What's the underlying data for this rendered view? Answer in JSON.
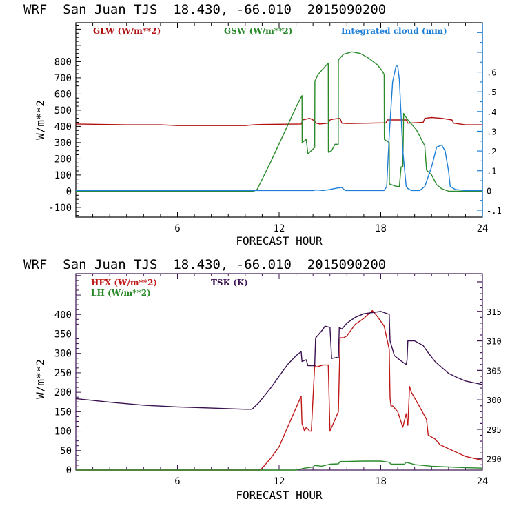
{
  "chart_data": [
    {
      "type": "line",
      "title": "WRF  San Juan TJS  18.430, -66.010  2015090200",
      "xlabel": "FORECAST HOUR",
      "ylabel": "W/m**2",
      "xlim": [
        0,
        24
      ],
      "ylim": [
        -160,
        1040
      ],
      "y2lim": [
        -0.135,
        0.85
      ],
      "xticks": [
        6,
        12,
        18,
        24
      ],
      "xtick_labels": [
        "6",
        "12",
        "18",
        "24"
      ],
      "yticks": [
        -100,
        0,
        100,
        200,
        300,
        400,
        500,
        600,
        700,
        800
      ],
      "ytick_labels": [
        "-100",
        "0",
        "100",
        "200",
        "300",
        "400",
        "500",
        "600",
        "700",
        "800"
      ],
      "y2ticks": [
        -0.1,
        0,
        0.1,
        0.2,
        0.3,
        0.4,
        0.5,
        0.6
      ],
      "y2tick_labels": [
        "-.1",
        "0",
        ".1",
        ".2",
        ".3",
        ".4",
        ".5",
        ".6"
      ],
      "grid": false,
      "legend": "top",
      "axis_color": "#000000",
      "right_axis_color": "#1e7fd8",
      "series": [
        {
          "name": "GLW (W/m**2)",
          "color": "#b01010",
          "axis": "left",
          "x": [
            0,
            3,
            5,
            6,
            8,
            10,
            10.5,
            11,
            13.3,
            13.4,
            13.8,
            14.0,
            14.2,
            14.4,
            14.9,
            15.0,
            15.2,
            15.6,
            15.7,
            16,
            18.3,
            18.4,
            19.5,
            19.6,
            20.5,
            20.6,
            21.0,
            21.6,
            22.2,
            22.3,
            23,
            24
          ],
          "y": [
            415,
            410,
            410,
            405,
            405,
            405,
            410,
            412,
            415,
            440,
            450,
            440,
            420,
            415,
            420,
            440,
            445,
            450,
            420,
            418,
            422,
            440,
            440,
            420,
            425,
            450,
            455,
            450,
            440,
            420,
            410,
            410
          ]
        },
        {
          "name": "GSW (W/m**2)",
          "color": "#2a8a2a",
          "axis": "left",
          "x": [
            0,
            10.5,
            10.7,
            11.5,
            12.3,
            13.0,
            13.35,
            13.36,
            13.6,
            13.7,
            13.71,
            13.9,
            14.1,
            14.11,
            14.3,
            14.8,
            14.9,
            14.91,
            15.1,
            15.3,
            15.49,
            15.5,
            15.8,
            16.3,
            16.8,
            17.3,
            17.8,
            18.1,
            18.2,
            18.21,
            18.5,
            18.51,
            18.9,
            19.1,
            19.2,
            19.3,
            19.35,
            19.4,
            19.6,
            20.1,
            20.6,
            20.7,
            21.0,
            21.3,
            21.6,
            22.0,
            23,
            24
          ],
          "y": [
            0,
            0,
            10,
            180,
            360,
            520,
            590,
            300,
            320,
            230,
            230,
            250,
            270,
            680,
            720,
            780,
            790,
            240,
            250,
            290,
            290,
            810,
            845,
            860,
            850,
            820,
            780,
            740,
            720,
            320,
            300,
            45,
            30,
            30,
            150,
            150,
            480,
            470,
            440,
            380,
            280,
            130,
            100,
            40,
            15,
            0,
            0,
            0
          ]
        },
        {
          "name": "Integrated cloud (mm)",
          "color": "#1e7fd8",
          "axis": "right",
          "x": [
            0,
            14.0,
            14.2,
            14.6,
            15.0,
            15.4,
            15.7,
            15.9,
            18.2,
            18.35,
            18.5,
            18.7,
            18.9,
            19.0,
            19.1,
            19.3,
            19.5,
            19.6,
            19.8,
            20.3,
            20.6,
            21.0,
            21.3,
            21.6,
            21.8,
            22.0,
            22.1,
            22.4,
            23,
            24
          ],
          "y": [
            0,
            0,
            0.003,
            0,
            0.005,
            0.012,
            0.015,
            0,
            0,
            0.02,
            0.28,
            0.55,
            0.63,
            0.63,
            0.56,
            0.2,
            0.02,
            0.01,
            0,
            0,
            0.02,
            0.12,
            0.22,
            0.23,
            0.2,
            0.1,
            0.02,
            0.005,
            0,
            0
          ]
        }
      ],
      "legend_entries": [
        "GLW (W/m**2)",
        "GSW (W/m**2)",
        "Integrated cloud (mm)"
      ]
    },
    {
      "type": "line",
      "title": "WRF  San Juan TJS  18.430, -66.010  2015090200",
      "xlabel": "FORECAST HOUR",
      "ylabel": "W/m**2",
      "xlim": [
        0,
        24
      ],
      "ylim": [
        0,
        505
      ],
      "y2lim": [
        288.1,
        321.4
      ],
      "xticks": [
        6,
        12,
        18,
        24
      ],
      "xtick_labels": [
        "6",
        "12",
        "18",
        "24"
      ],
      "yticks": [
        0,
        50,
        100,
        150,
        200,
        250,
        300,
        350,
        400
      ],
      "ytick_labels": [
        "0",
        "50",
        "100",
        "150",
        "200",
        "250",
        "300",
        "350",
        "400"
      ],
      "y2ticks": [
        290,
        295,
        300,
        305,
        310,
        315
      ],
      "y2tick_labels": [
        "290",
        "295",
        "300",
        "305",
        "310",
        "315"
      ],
      "grid": false,
      "legend": "top-left",
      "axis_color": "#3a1050",
      "series": [
        {
          "name": "HFX (W/m**2)",
          "color": "#c01818",
          "axis": "left",
          "x": [
            0,
            10.9,
            11.0,
            11.5,
            12.0,
            12.5,
            13.0,
            13.3,
            13.35,
            13.5,
            13.6,
            13.8,
            13.9,
            14.1,
            14.2,
            14.6,
            14.8,
            14.9,
            15.0,
            15.1,
            15.2,
            15.3,
            15.5,
            15.6,
            15.8,
            16.0,
            16.5,
            17.0,
            17.5,
            17.8,
            18.2,
            18.5,
            18.55,
            18.6,
            18.7,
            19.0,
            19.3,
            19.5,
            19.6,
            19.7,
            19.8,
            20.2,
            20.7,
            20.8,
            21.2,
            21.5,
            22.0,
            22.5,
            23.0,
            24.0
          ],
          "y": [
            0,
            0,
            5,
            30,
            60,
            110,
            160,
            190,
            120,
            100,
            110,
            100,
            100,
            270,
            265,
            270,
            270,
            270,
            100,
            110,
            120,
            130,
            150,
            340,
            340,
            345,
            375,
            390,
            410,
            395,
            370,
            310,
            185,
            165,
            165,
            150,
            110,
            145,
            115,
            215,
            200,
            170,
            130,
            90,
            80,
            65,
            55,
            45,
            35,
            25
          ]
        },
        {
          "name": "LH (W/m**2)",
          "color": "#2a8a2a",
          "axis": "left",
          "x": [
            0,
            13.0,
            13.5,
            14.0,
            14.1,
            14.5,
            15.0,
            15.5,
            15.6,
            16.0,
            17.0,
            18.0,
            18.5,
            18.6,
            19.4,
            19.5,
            20.0,
            21.0,
            22.0,
            23.0,
            24.0
          ],
          "y": [
            0,
            0,
            5,
            8,
            12,
            10,
            15,
            16,
            22,
            22,
            23,
            23,
            20,
            15,
            15,
            20,
            14,
            10,
            8,
            6,
            5
          ]
        },
        {
          "name": "TSK (K)",
          "color": "#3a1050",
          "axis": "right",
          "x": [
            0,
            2,
            4,
            6,
            8,
            10,
            10.4,
            10.8,
            11.5,
            12.0,
            12.5,
            13.0,
            13.3,
            13.35,
            13.6,
            13.7,
            14.0,
            14.1,
            14.15,
            14.6,
            14.7,
            15.0,
            15.1,
            15.4,
            15.5,
            15.55,
            15.7,
            16.0,
            16.5,
            17.0,
            17.5,
            18.0,
            18.2,
            18.5,
            18.55,
            18.8,
            19.2,
            19.5,
            19.55,
            19.6,
            20.0,
            20.5,
            20.8,
            21.2,
            21.6,
            22.0,
            22.5,
            23.0,
            24.0
          ],
          "y": [
            300.2,
            299.6,
            299.1,
            298.8,
            298.6,
            298.4,
            298.4,
            299.5,
            302.0,
            304.0,
            306.0,
            307.5,
            308.2,
            306.5,
            306.8,
            305.8,
            305.8,
            305.8,
            310.5,
            312.0,
            312.5,
            312.3,
            307.0,
            307.2,
            307.1,
            312.3,
            312.0,
            313.0,
            314.0,
            314.6,
            314.8,
            315.0,
            314.8,
            314.5,
            310.0,
            307.5,
            306.6,
            306.0,
            306.7,
            310.0,
            310.0,
            309.2,
            308.0,
            306.5,
            305.5,
            304.5,
            303.8,
            303.2,
            302.6
          ]
        }
      ],
      "legend_entries": [
        "HFX (W/m**2)",
        "LH (W/m**2)",
        "TSK (K)"
      ]
    }
  ]
}
